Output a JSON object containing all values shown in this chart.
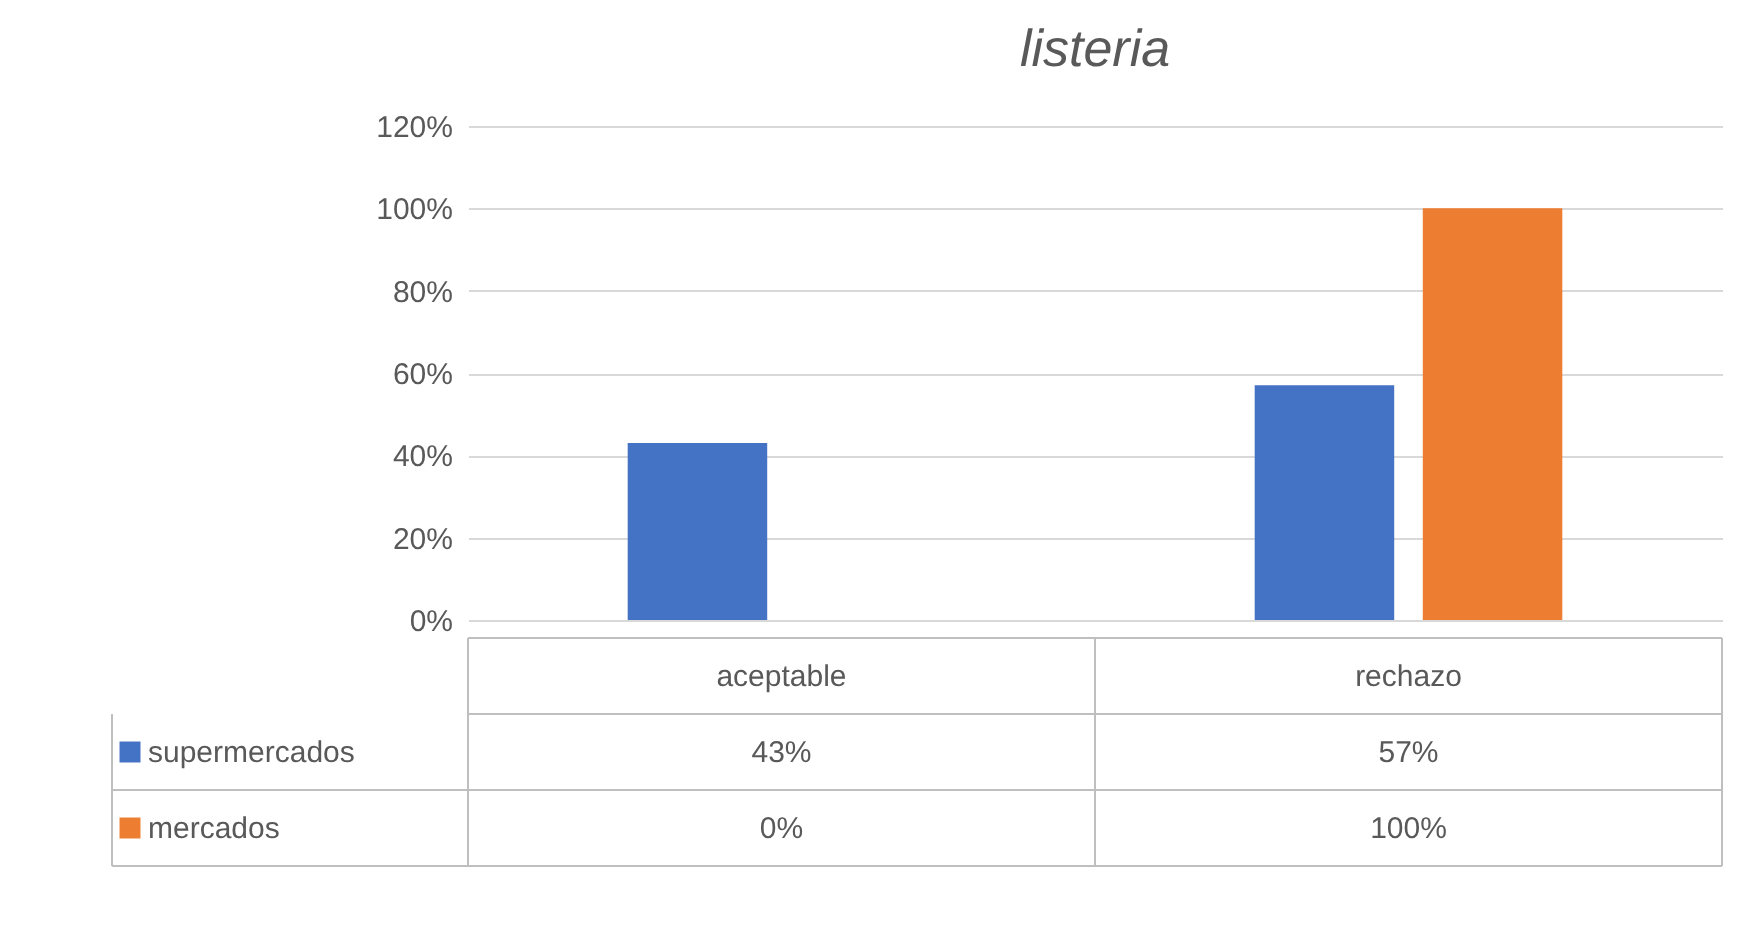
{
  "chart_data": {
    "type": "bar",
    "title": "listeria",
    "categories": [
      "aceptable",
      "rechazo"
    ],
    "series": [
      {
        "name": "supermercados",
        "color": "#4472c4",
        "values": [
          43,
          57
        ],
        "value_labels": [
          "43%",
          "57%"
        ]
      },
      {
        "name": "mercados",
        "color": "#ed7d31",
        "values": [
          0,
          100
        ],
        "value_labels": [
          "0%",
          "100%"
        ]
      }
    ],
    "ylim": [
      0,
      120
    ],
    "yticks": [
      {
        "value": 0,
        "label": "0%"
      },
      {
        "value": 20,
        "label": "20%"
      },
      {
        "value": 40,
        "label": "40%"
      },
      {
        "value": 60,
        "label": "60%"
      },
      {
        "value": 80,
        "label": "80%"
      },
      {
        "value": 100,
        "label": "100%"
      },
      {
        "value": 120,
        "label": "120%"
      }
    ],
    "grid": "y",
    "legend": "bottom left"
  }
}
